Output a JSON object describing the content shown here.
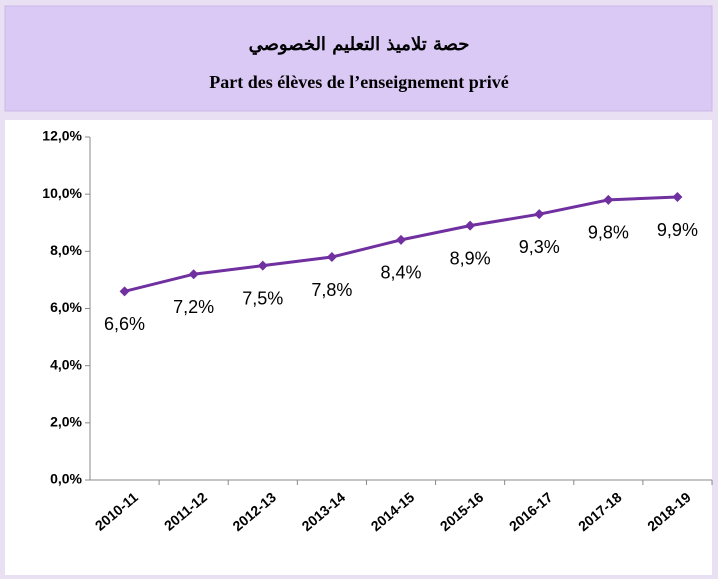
{
  "chart_data": {
    "type": "line",
    "title": "حصة تلاميذ التعليم الخصوصي",
    "subtitle": "Part des élèves de l’enseignement privé",
    "categories": [
      "2010-11",
      "2011-12",
      "2012-13",
      "2013-14",
      "2014-15",
      "2015-16",
      "2016-17",
      "2017-18",
      "2018-19"
    ],
    "series": [
      {
        "name": "Part des élèves de l’enseignement privé",
        "color": "#7030a0",
        "values": [
          6.6,
          7.2,
          7.5,
          7.8,
          8.4,
          8.9,
          9.3,
          9.8,
          9.9
        ],
        "value_labels": [
          "6,6%",
          "7,2%",
          "7,5%",
          "7,8%",
          "8,4%",
          "8,9%",
          "9,3%",
          "9,8%",
          "9,9%"
        ]
      }
    ],
    "ylim": [
      0,
      12
    ],
    "yticks": [
      {
        "value": 0,
        "label": "0,0%"
      },
      {
        "value": 2,
        "label": "2,0%"
      },
      {
        "value": 4,
        "label": "4,0%"
      },
      {
        "value": 6,
        "label": "6,0%"
      },
      {
        "value": 8,
        "label": "8,0%"
      },
      {
        "value": 10,
        "label": "10,0%"
      },
      {
        "value": 12,
        "label": "12,0%"
      }
    ],
    "grid": false
  }
}
